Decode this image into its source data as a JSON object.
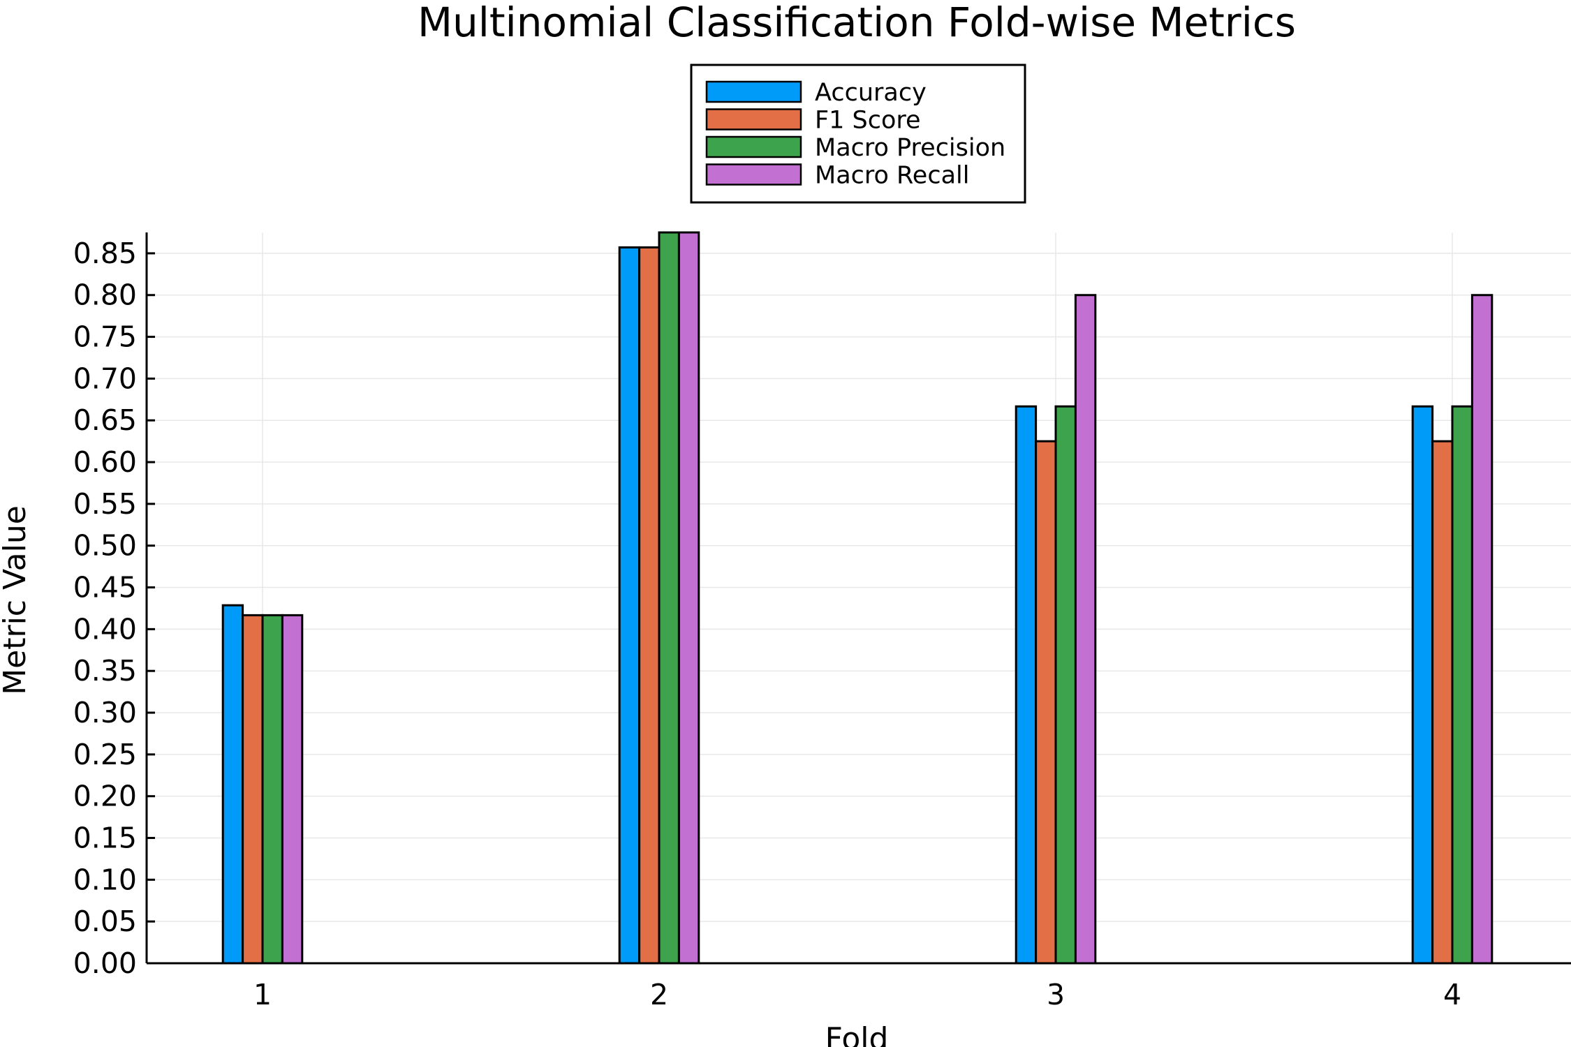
{
  "chart_data": {
    "type": "bar",
    "title": "Multinomial Classification Fold-wise Metrics",
    "xlabel": "Fold",
    "ylabel": "Metric Value",
    "categories": [
      "1",
      "2",
      "3",
      "4"
    ],
    "series": [
      {
        "name": "Accuracy",
        "color": "#009af9",
        "values": [
          0.4286,
          0.8571,
          0.6667,
          0.6667
        ]
      },
      {
        "name": "F1 Score",
        "color": "#e26f46",
        "values": [
          0.4167,
          0.8571,
          0.625,
          0.625
        ]
      },
      {
        "name": "Macro Precision",
        "color": "#3da44d",
        "values": [
          0.4167,
          0.875,
          0.6667,
          0.6667
        ]
      },
      {
        "name": "Macro Recall",
        "color": "#c271d2",
        "values": [
          0.4167,
          0.875,
          0.8,
          0.8
        ]
      }
    ],
    "yticks": [
      "0.00",
      "0.05",
      "0.10",
      "0.15",
      "0.20",
      "0.25",
      "0.30",
      "0.35",
      "0.40",
      "0.45",
      "0.50",
      "0.55",
      "0.60",
      "0.65",
      "0.70",
      "0.75",
      "0.80",
      "0.85"
    ],
    "ylim": [
      0,
      0.875
    ],
    "grid": true,
    "legend_position": "top-center"
  }
}
